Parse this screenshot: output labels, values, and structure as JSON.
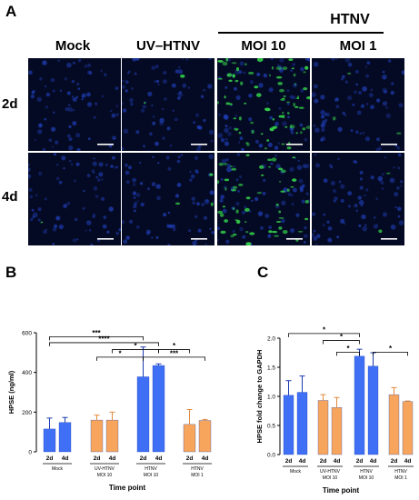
{
  "panel_a": {
    "letter": "A",
    "group_label": "HTNV",
    "columns": [
      "Mock",
      "UV–HTNV",
      "MOI 10",
      "MOI 1"
    ],
    "rows": [
      "2d",
      "4d"
    ],
    "colors": {
      "nuclei": "#1f3fb8",
      "virus": "#34d24a",
      "background": "#050a24",
      "scale_bar": "#ffffff"
    }
  },
  "chart_data": [
    {
      "panel": "B",
      "type": "bar",
      "ylabel": "HPSE (ng/ml)",
      "xlabel": "Time point",
      "ylim": [
        0,
        600
      ],
      "yticks": [
        "0",
        "200",
        "400",
        "600"
      ],
      "groups": [
        {
          "label_lines": [
            "Mock"
          ],
          "color": "#3f6ff5",
          "bars": [
            {
              "x": "2d",
              "value": 115,
              "error": 55
            },
            {
              "x": "4d",
              "value": 148,
              "error": 25
            }
          ]
        },
        {
          "label_lines": [
            "UV-HTNV",
            "MOI 10"
          ],
          "color": "#f7a55c",
          "bars": [
            {
              "x": "2d",
              "value": 160,
              "error": 25
            },
            {
              "x": "4d",
              "value": 160,
              "error": 40
            }
          ]
        },
        {
          "label_lines": [
            "HTNV",
            "MOI 10"
          ],
          "color": "#3f6ff5",
          "bars": [
            {
              "x": "2d",
              "value": 378,
              "error": 150
            },
            {
              "x": "4d",
              "value": 435,
              "error": 8
            }
          ]
        },
        {
          "label_lines": [
            "HTNV",
            "MOI 1"
          ],
          "color": "#f7a55c",
          "bars": [
            {
              "x": "2d",
              "value": 138,
              "error": 75
            },
            {
              "x": "4d",
              "value": 158,
              "error": 5
            }
          ]
        }
      ],
      "significance": [
        {
          "from": [
            0,
            0
          ],
          "to": [
            2,
            0
          ],
          "y": 580,
          "label": "***"
        },
        {
          "from": [
            0,
            0
          ],
          "to": [
            2,
            1
          ],
          "y": 550,
          "label": "****"
        },
        {
          "from": [
            1,
            1
          ],
          "to": [
            2,
            1
          ],
          "y": 515,
          "label": "*"
        },
        {
          "from": [
            1,
            0
          ],
          "to": [
            2,
            0
          ],
          "y": 477,
          "label": "*"
        },
        {
          "from": [
            2,
            1
          ],
          "to": [
            3,
            0
          ],
          "y": 515,
          "label": "*"
        },
        {
          "from": [
            2,
            0
          ],
          "to": [
            3,
            1
          ],
          "y": 477,
          "label": "***"
        }
      ]
    },
    {
      "panel": "C",
      "type": "bar",
      "ylabel": "HPSE fold change to GAPDH",
      "xlabel": "Time point",
      "ylim": [
        0,
        2.0
      ],
      "yticks": [
        "0.0",
        "0.5",
        "1.0",
        "1.5",
        "2.0"
      ],
      "groups": [
        {
          "label_lines": [
            "Mock"
          ],
          "color": "#3f6ff5",
          "bars": [
            {
              "x": "2d",
              "value": 1.02,
              "error": 0.25
            },
            {
              "x": "4d",
              "value": 1.07,
              "error": 0.28
            }
          ]
        },
        {
          "label_lines": [
            "UV-HTNV",
            "MOI 10"
          ],
          "color": "#f7a55c",
          "bars": [
            {
              "x": "2d",
              "value": 0.93,
              "error": 0.1
            },
            {
              "x": "4d",
              "value": 0.81,
              "error": 0.17
            }
          ]
        },
        {
          "label_lines": [
            "HTNV",
            "MOI 10"
          ],
          "color": "#3f6ff5",
          "bars": [
            {
              "x": "2d",
              "value": 1.69,
              "error": 0.12
            },
            {
              "x": "4d",
              "value": 1.52,
              "error": 0.23
            }
          ]
        },
        {
          "label_lines": [
            "HTNV",
            "MOI 1"
          ],
          "color": "#f7a55c",
          "bars": [
            {
              "x": "2d",
              "value": 1.03,
              "error": 0.12
            },
            {
              "x": "4d",
              "value": 0.91,
              "error": 0.01
            }
          ]
        }
      ],
      "significance": [
        {
          "from": [
            0,
            0
          ],
          "to": [
            2,
            0
          ],
          "y": 2.08,
          "label": "*"
        },
        {
          "from": [
            1,
            0
          ],
          "to": [
            2,
            0
          ],
          "y": 1.96,
          "label": "*"
        },
        {
          "from": [
            1,
            1
          ],
          "to": [
            2,
            0
          ],
          "y": 1.76,
          "label": "*"
        },
        {
          "from": [
            2,
            1
          ],
          "to": [
            3,
            1
          ],
          "y": 1.76,
          "label": "*"
        }
      ]
    }
  ]
}
